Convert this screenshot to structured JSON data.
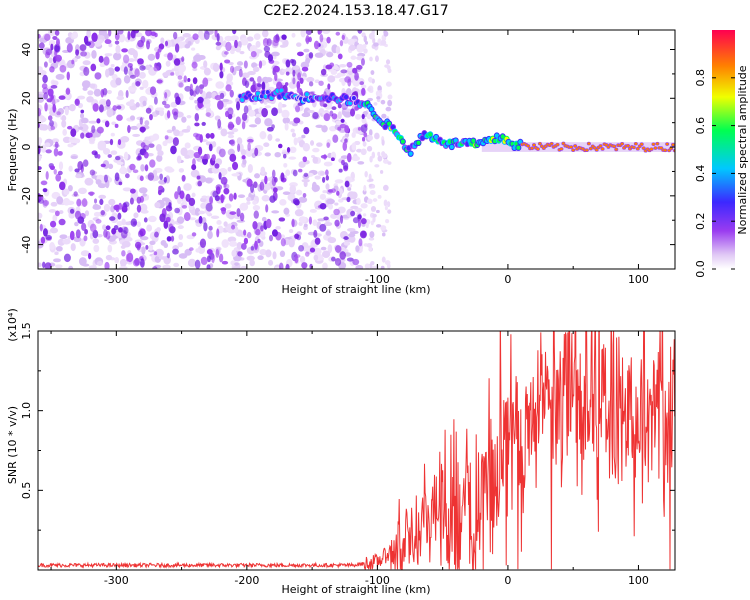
{
  "title": "C2E2.2024.153.18.47.G17",
  "chart_data": [
    {
      "type": "heatmap",
      "xlabel": "Height of straight line (km)",
      "ylabel": "Frequency (Hz)",
      "xlim": [
        -360,
        128
      ],
      "ylim": [
        -50,
        48
      ],
      "xticks": [
        -300,
        -200,
        -100,
        0,
        100
      ],
      "yticks": [
        40,
        20,
        0,
        -20,
        -40
      ],
      "colorbar": {
        "label": "Normalized spectral amplitude",
        "range": [
          0.0,
          1.0
        ],
        "ticks": [
          0.0,
          0.2,
          0.4,
          0.6,
          0.8
        ],
        "tick_labels": [
          "0.0",
          "0.2",
          "0.4",
          "0.6",
          "0.8"
        ],
        "colormap": [
          "#e0c8f5",
          "#9a3cf0",
          "#3c28ff",
          "#00c8ff",
          "#00ff50",
          "#f0ff00",
          "#ff8000",
          "#ff0050"
        ]
      },
      "ridge": [
        {
          "x": -205,
          "y": 20
        },
        {
          "x": -190,
          "y": 21
        },
        {
          "x": -175,
          "y": 22
        },
        {
          "x": -160,
          "y": 20
        },
        {
          "x": -145,
          "y": 21
        },
        {
          "x": -130,
          "y": 20
        },
        {
          "x": -110,
          "y": 18
        },
        {
          "x": -95,
          "y": 10
        },
        {
          "x": -85,
          "y": 6
        },
        {
          "x": -75,
          "y": -2
        },
        {
          "x": -65,
          "y": 5
        },
        {
          "x": -55,
          "y": 4
        },
        {
          "x": -45,
          "y": 1
        },
        {
          "x": -35,
          "y": 2
        },
        {
          "x": -25,
          "y": 1
        },
        {
          "x": -15,
          "y": 2
        },
        {
          "x": -5,
          "y": 4
        },
        {
          "x": 5,
          "y": 1
        },
        {
          "x": 20,
          "y": 0
        },
        {
          "x": 50,
          "y": 0
        },
        {
          "x": 80,
          "y": 0
        },
        {
          "x": 128,
          "y": 0
        }
      ]
    },
    {
      "type": "line",
      "xlabel": "Height of straight line (km)",
      "ylabel": "SNR (10 * v/v)",
      "scale_label": "(x10⁴)",
      "xlim": [
        -360,
        128
      ],
      "ylim": [
        0,
        1.5
      ],
      "xticks": [
        -300,
        -200,
        -100,
        0,
        100
      ],
      "yticks": [
        0.5,
        1.0,
        1.5
      ],
      "ytick_labels": [
        "0.5",
        "1.0",
        "1.5"
      ],
      "color": "#ee3333",
      "envelope": [
        {
          "x": -360,
          "y": 0.03
        },
        {
          "x": -200,
          "y": 0.03
        },
        {
          "x": -120,
          "y": 0.03
        },
        {
          "x": -100,
          "y": 0.05
        },
        {
          "x": -85,
          "y": 0.15
        },
        {
          "x": -70,
          "y": 0.3
        },
        {
          "x": -55,
          "y": 0.35
        },
        {
          "x": -40,
          "y": 0.3
        },
        {
          "x": -25,
          "y": 0.4
        },
        {
          "x": -10,
          "y": 0.6
        },
        {
          "x": 0,
          "y": 0.75
        },
        {
          "x": 15,
          "y": 0.95
        },
        {
          "x": 30,
          "y": 1.05
        },
        {
          "x": 50,
          "y": 1.1
        },
        {
          "x": 70,
          "y": 1.05
        },
        {
          "x": 90,
          "y": 1.0
        },
        {
          "x": 110,
          "y": 0.95
        },
        {
          "x": 128,
          "y": 0.9
        }
      ]
    }
  ]
}
